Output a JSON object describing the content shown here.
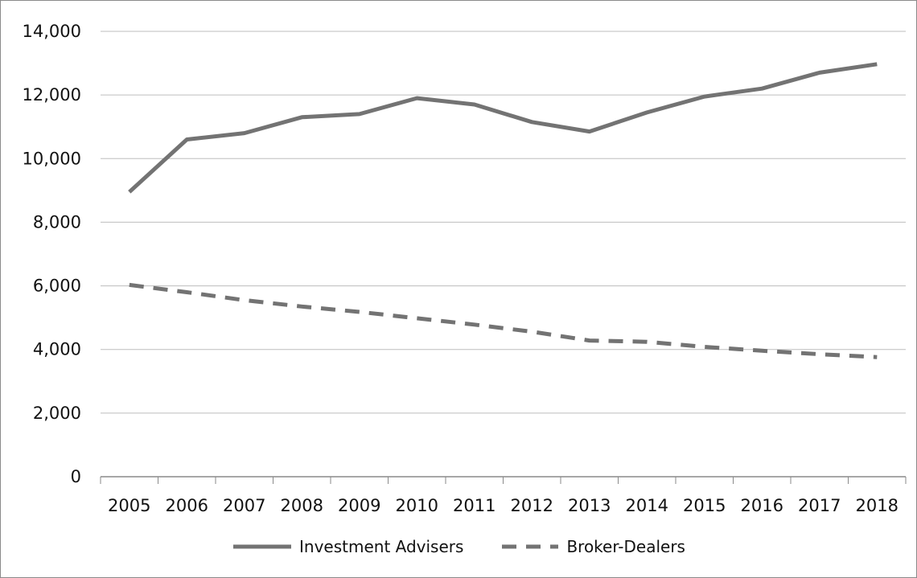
{
  "chart_data": {
    "type": "line",
    "title": "",
    "xlabel": "",
    "ylabel": "",
    "x": [
      "2005",
      "2006",
      "2007",
      "2008",
      "2009",
      "2010",
      "2011",
      "2012",
      "2013",
      "2014",
      "2015",
      "2016",
      "2017",
      "2018"
    ],
    "ylim": [
      0,
      14000
    ],
    "yticks": [
      0,
      2000,
      4000,
      6000,
      8000,
      10000,
      12000,
      14000
    ],
    "ytick_labels": [
      "0",
      "2,000",
      "4,000",
      "6,000",
      "8,000",
      "10,000",
      "12,000",
      "14,000"
    ],
    "grid": true,
    "legend_position": "bottom",
    "series": [
      {
        "name": "Investment Advisers",
        "style": "solid",
        "color": "#737373",
        "values": [
          8950,
          10600,
          10800,
          11300,
          11400,
          11900,
          11700,
          11150,
          10850,
          11450,
          11950,
          12200,
          12700,
          12970
        ]
      },
      {
        "name": "Broker-Dealers",
        "style": "dashed",
        "color": "#737373",
        "values": [
          6030,
          5800,
          5550,
          5350,
          5180,
          4980,
          4780,
          4560,
          4280,
          4240,
          4080,
          3960,
          3850,
          3760
        ]
      }
    ]
  }
}
